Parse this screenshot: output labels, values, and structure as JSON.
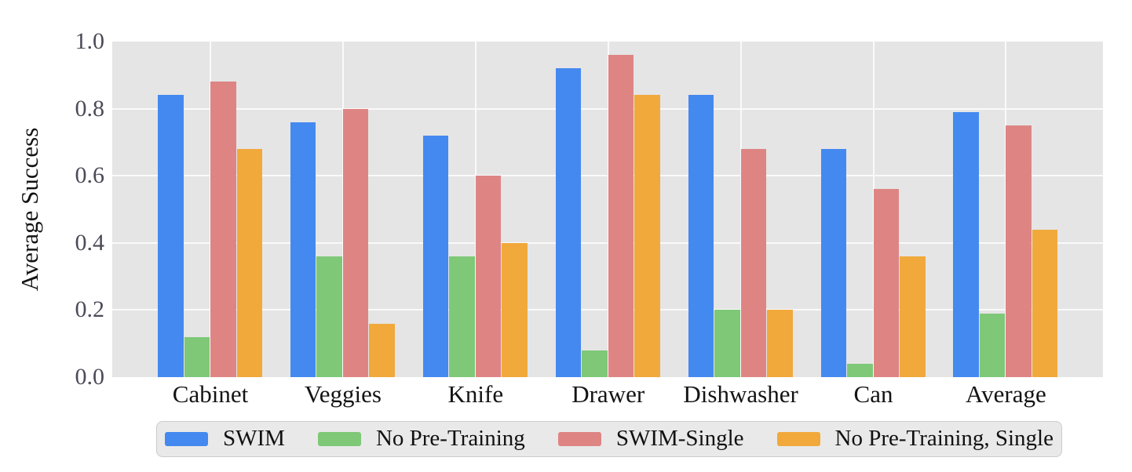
{
  "chart_data": {
    "type": "bar",
    "title": "",
    "xlabel": "",
    "ylabel": "Average Success",
    "categories": [
      "Cabinet",
      "Veggies",
      "Knife",
      "Drawer",
      "Dishwasher",
      "Can",
      "Average"
    ],
    "series": [
      {
        "name": "SWIM",
        "color": "#4489F0",
        "values": [
          0.84,
          0.76,
          0.72,
          0.92,
          0.84,
          0.68,
          0.79
        ]
      },
      {
        "name": "No Pre-Training",
        "color": "#7EC878",
        "values": [
          0.12,
          0.36,
          0.36,
          0.08,
          0.2,
          0.04,
          0.19
        ]
      },
      {
        "name": "SWIM-Single",
        "color": "#DE8584",
        "values": [
          0.88,
          0.8,
          0.6,
          0.96,
          0.68,
          0.56,
          0.75
        ]
      },
      {
        "name": "No Pre-Training, Single",
        "color": "#F1A93C",
        "values": [
          0.68,
          0.16,
          0.4,
          0.84,
          0.2,
          0.36,
          0.44
        ]
      }
    ],
    "ylim": [
      0.0,
      1.0
    ],
    "yticks": [
      0.0,
      0.2,
      0.4,
      0.6,
      0.8,
      1.0
    ],
    "grid": true,
    "grid_color": "#FAFAFA",
    "plot_background": "#E5E5E5",
    "legend_position": "bottom",
    "legend_background": "#E9E9E9",
    "legend_border": "#CBCBCB",
    "tick_label_color": "#4B4B58",
    "axis_label_color": "#141414"
  }
}
